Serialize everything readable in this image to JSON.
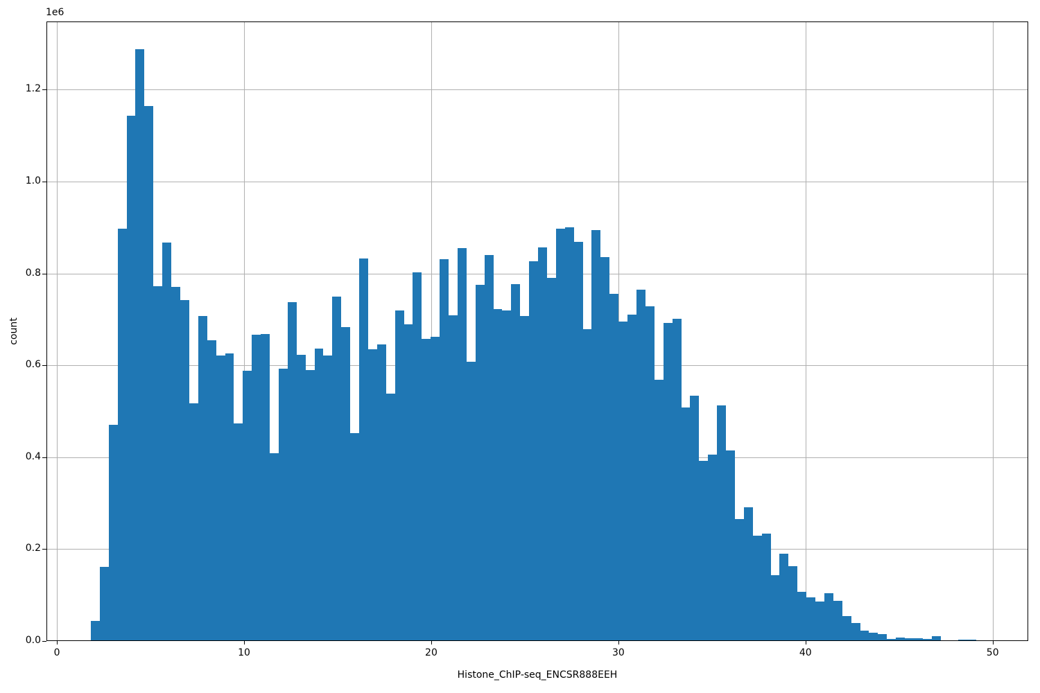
{
  "chart_data": {
    "type": "bar",
    "subtype": "histogram",
    "title": "",
    "xlabel": "Histone_ChIP-seq_ENCSR888EEH",
    "ylabel": "count",
    "y_offset_text": "1e6",
    "grid": true,
    "legend": false,
    "bar_color": "#1f77b4",
    "grid_color": "#b0b0b0",
    "x_tick_labels": [
      "0",
      "10",
      "20",
      "30",
      "40",
      "50"
    ],
    "x_ticks": [
      0,
      10,
      20,
      30,
      40,
      50
    ],
    "y_tick_labels": [
      "0.0",
      "0.2",
      "0.4",
      "0.6",
      "0.8",
      "1.0",
      "1.2"
    ],
    "y_ticks": [
      0,
      200000,
      400000,
      600000,
      800000,
      1000000,
      1200000
    ],
    "xlim": [
      -0.56,
      51.9
    ],
    "ylim": [
      0,
      1348400
    ],
    "bin_start": 1.81,
    "bin_width": 0.478,
    "counts": [
      43000,
      161000,
      470000,
      898000,
      1143000,
      1288000,
      1165000,
      772000,
      867000,
      770000,
      742000,
      518000,
      707000,
      654000,
      621000,
      626000,
      473000,
      588000,
      666000,
      668000,
      408000,
      592000,
      737000,
      623000,
      589000,
      636000,
      621000,
      749000,
      683000,
      453000,
      832000,
      635000,
      645000,
      538000,
      720000,
      690000,
      802000,
      657000,
      662000,
      831000,
      709000,
      855000,
      608000,
      775000,
      840000,
      722000,
      719000,
      777000,
      708000,
      827000,
      857000,
      790000,
      898000,
      901000,
      869000,
      679000,
      895000,
      836000,
      755000,
      696000,
      710000,
      764000,
      729000,
      568000,
      692000,
      701000,
      508000,
      534000,
      392000,
      406000,
      513000,
      415000,
      266000,
      291000,
      229000,
      234000,
      143000,
      190000,
      163000,
      107000,
      95000,
      86000,
      104000,
      88000,
      55000,
      39000,
      23000,
      18000,
      15000,
      4000,
      8000,
      6000,
      6000,
      4000,
      11000,
      1000,
      1000,
      3000,
      3000
    ]
  }
}
